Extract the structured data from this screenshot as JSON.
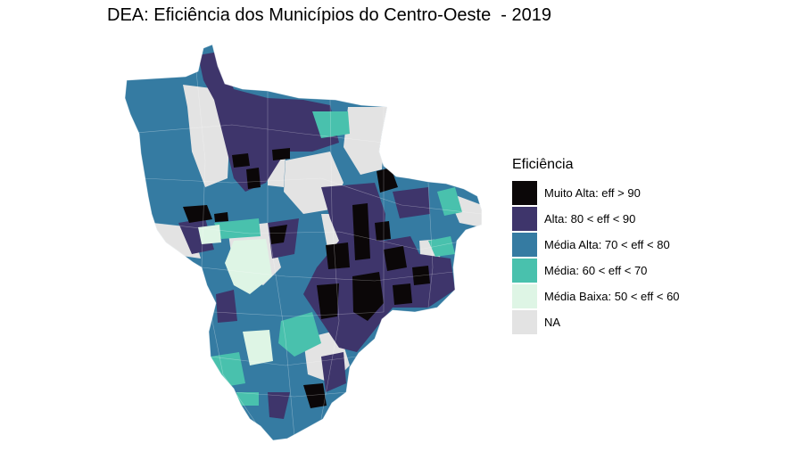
{
  "title": "DEA: Eficiência dos Municípios do Centro-Oeste  - 2019",
  "map": {
    "type": "choropleth",
    "region": "Centro-Oeste",
    "year": "2019"
  },
  "legend": {
    "title": "Eficiência",
    "position": "right",
    "items": [
      {
        "label": "Muito Alta: eff > 90",
        "color": "#0b0708"
      },
      {
        "label": "Alta: 80 < eff < 90",
        "color": "#3e356b"
      },
      {
        "label": "Média Alta: 70 < eff < 80",
        "color": "#357ba2"
      },
      {
        "label": "Média: 60 < eff < 70",
        "color": "#49c1ad"
      },
      {
        "label": "Média Baixa: 50 < eff < 60",
        "color": "#def5e5"
      },
      {
        "label": "NA",
        "color": "#e3e3e3"
      }
    ]
  }
}
